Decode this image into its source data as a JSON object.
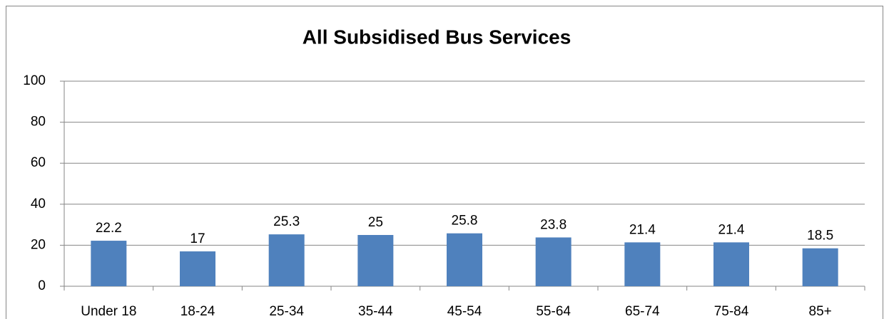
{
  "chart_data": {
    "type": "bar",
    "title": "All Subsidised Bus Services",
    "categories": [
      "Under 18",
      "18-24",
      "25-34",
      "35-44",
      "45-54",
      "55-64",
      "65-74",
      "75-84",
      "85+"
    ],
    "values": [
      22.2,
      17,
      25.3,
      25,
      25.8,
      23.8,
      21.4,
      21.4,
      18.5
    ],
    "color": "#4f81bd",
    "ylim": [
      0,
      100
    ],
    "yticks": [
      0,
      20,
      40,
      60,
      80,
      100
    ],
    "grid": true
  }
}
